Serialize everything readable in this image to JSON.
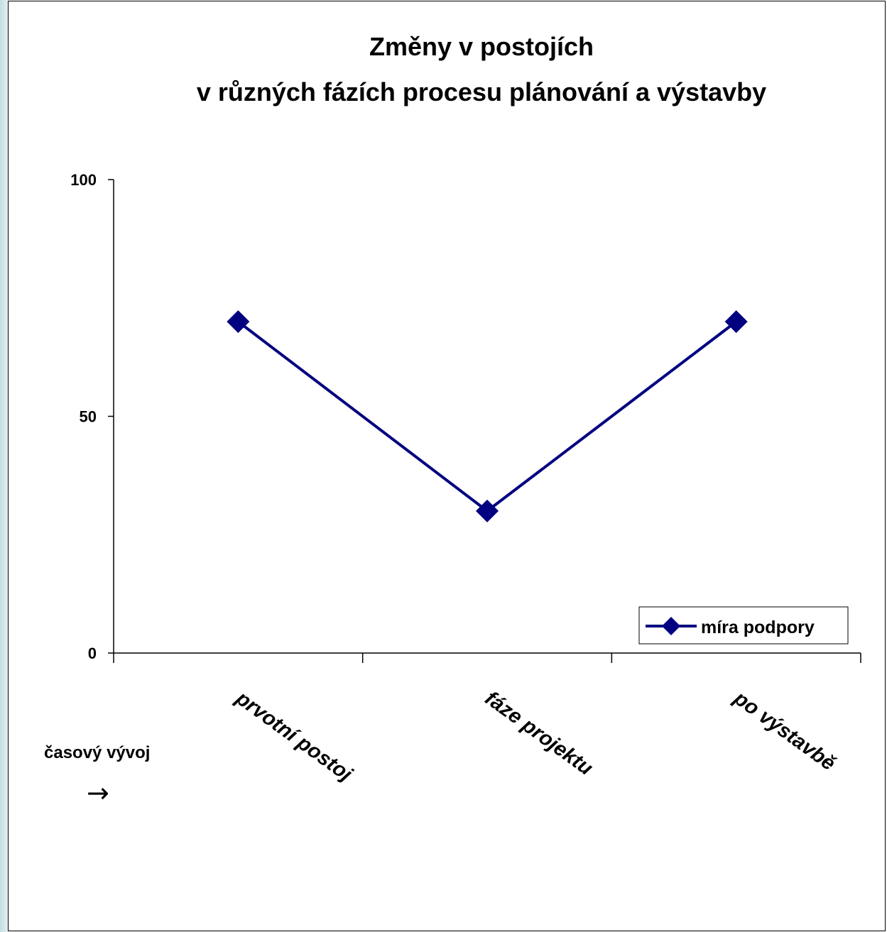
{
  "chart_data": {
    "type": "line",
    "title_lines": [
      "Změny v postojích",
      "v různých fázích procesu plánování a výstavby"
    ],
    "categories": [
      "prvotní postoj",
      "fáze projektu",
      "po výstavbě"
    ],
    "series": [
      {
        "name": "míra podpory",
        "values": [
          70,
          30,
          70
        ],
        "color": "#000080",
        "marker": "diamond"
      }
    ],
    "ylim": [
      0,
      100
    ],
    "y_ticks": [
      "0",
      "50",
      "100"
    ],
    "y_tick_values": [
      0,
      50,
      100
    ],
    "grid": false,
    "legend_position": "bottom-right",
    "annotation": "časový vývoj",
    "annotation_arrow": "→"
  }
}
